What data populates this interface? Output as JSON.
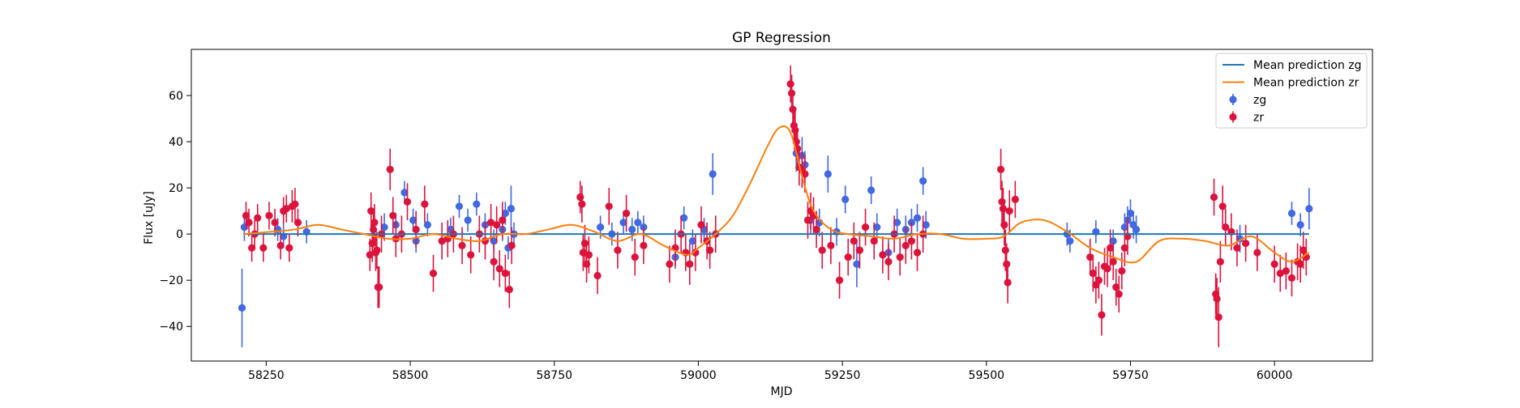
{
  "chart_data": {
    "type": "scatter",
    "title": "GP Regression",
    "xlabel": "MJD",
    "ylabel": "Flux [uJy]",
    "xlim": [
      58120,
      60170
    ],
    "ylim": [
      -55,
      80
    ],
    "xticks": [
      58250,
      58500,
      58750,
      59000,
      59250,
      59500,
      59750,
      60000
    ],
    "xtick_labels": [
      "58250",
      "58500",
      "58750",
      "59000",
      "59250",
      "59500",
      "59750",
      "60000"
    ],
    "yticks": [
      -40,
      -20,
      0,
      20,
      40,
      60
    ],
    "ytick_labels": [
      "−40",
      "−20",
      "0",
      "20",
      "40",
      "60"
    ],
    "grid": false,
    "legend_position": "upper right",
    "legend": [
      {
        "label": "Mean prediction zg",
        "kind": "line",
        "color": "#1f77b4"
      },
      {
        "label": "Mean prediction zr",
        "kind": "line",
        "color": "#ff7f0e"
      },
      {
        "label": "zg",
        "kind": "errorbar",
        "color": "#4169e1"
      },
      {
        "label": "zr",
        "kind": "errorbar",
        "color": "#dc143c"
      }
    ],
    "lines": [
      {
        "name": "Mean prediction zg",
        "color": "#1f77b4",
        "x": [
          58210,
          60060
        ],
        "y": [
          0,
          0
        ]
      },
      {
        "name": "Mean prediction zr",
        "color": "#ff7f0e",
        "x": [
          58210,
          58260,
          58300,
          58340,
          58380,
          58420,
          58460,
          58500,
          58540,
          58580,
          58620,
          58660,
          58700,
          58740,
          58780,
          58820,
          58860,
          58900,
          58940,
          58980,
          59000,
          59030,
          59060,
          59090,
          59120,
          59140,
          59160,
          59180,
          59200,
          59230,
          59260,
          59300,
          59340,
          59380,
          59420,
          59460,
          59500,
          59530,
          59560,
          59600,
          59640,
          59680,
          59720,
          59760,
          59800,
          59840,
          59880,
          59920,
          59960,
          60000,
          60030,
          60060
        ],
        "y": [
          0,
          1,
          2,
          4,
          2,
          0,
          -2,
          -2,
          0,
          -2,
          -3,
          0,
          0,
          2,
          4,
          1,
          -3,
          0,
          -5,
          -9,
          -6,
          0,
          8,
          22,
          38,
          46,
          44,
          25,
          10,
          2,
          0,
          -1,
          -2,
          0,
          0,
          -2,
          -2,
          -1,
          5,
          6,
          1,
          -6,
          -10,
          -12,
          -3,
          -2,
          -3,
          -5,
          -1,
          -8,
          -12,
          -8
        ]
      }
    ],
    "series": [
      {
        "name": "zg",
        "color": "#4169e1",
        "x": [
          58208,
          58212,
          58270,
          58280,
          58320,
          58455,
          58475,
          58490,
          58505,
          58510,
          58530,
          58570,
          58585,
          58600,
          58615,
          58630,
          58645,
          58660,
          58665,
          58670,
          58675,
          58680,
          58830,
          58850,
          58870,
          58885,
          58895,
          58905,
          58960,
          58975,
          58990,
          59010,
          59025,
          59170,
          59180,
          59185,
          59195,
          59210,
          59225,
          59240,
          59255,
          59275,
          59300,
          59310,
          59330,
          59345,
          59360,
          59370,
          59380,
          59390,
          59395,
          59640,
          59645,
          59690,
          59720,
          59740,
          59745,
          59750,
          59755,
          59760,
          59940,
          60030,
          60045,
          60060
        ],
        "y": [
          -32,
          3,
          2,
          -1,
          1,
          3,
          4,
          18,
          6,
          -3,
          4,
          2,
          12,
          6,
          13,
          4,
          -3,
          2,
          9,
          -6,
          11,
          0,
          3,
          0,
          5,
          2,
          5,
          3,
          -10,
          7,
          -3,
          2,
          26,
          35,
          34,
          30,
          6,
          5,
          26,
          1,
          15,
          -13,
          19,
          3,
          -8,
          5,
          2,
          5,
          7,
          23,
          4,
          0,
          -3,
          1,
          -3,
          3,
          6,
          9,
          4,
          2,
          -2,
          9,
          4,
          11
        ],
        "yerr": [
          17,
          6,
          5,
          5,
          5,
          6,
          5,
          5,
          5,
          5,
          5,
          5,
          5,
          5,
          5,
          5,
          5,
          5,
          5,
          5,
          10,
          5,
          5,
          5,
          5,
          5,
          5,
          5,
          5,
          5,
          5,
          5,
          9,
          8,
          8,
          6,
          6,
          6,
          8,
          6,
          6,
          10,
          6,
          6,
          6,
          6,
          6,
          6,
          6,
          6,
          6,
          5,
          5,
          5,
          5,
          6,
          6,
          6,
          6,
          6,
          6,
          5,
          5,
          9
        ]
      },
      {
        "name": "zr",
        "color": "#dc143c",
        "x": [
          58215,
          58220,
          58225,
          58230,
          58235,
          58245,
          58255,
          58265,
          58275,
          58280,
          58285,
          58290,
          58295,
          58300,
          58305,
          58430,
          58432,
          58434,
          58436,
          58438,
          58440,
          58442,
          58444,
          58446,
          58450,
          58465,
          58470,
          58475,
          58485,
          58495,
          58510,
          58525,
          58540,
          58555,
          58565,
          58575,
          58590,
          58605,
          58620,
          58630,
          58640,
          58645,
          58650,
          58655,
          58660,
          58665,
          58672,
          58676,
          58795,
          58798,
          58800,
          58803,
          58806,
          58810,
          58825,
          58845,
          58860,
          58875,
          58890,
          58905,
          58950,
          58960,
          58970,
          58978,
          58985,
          58995,
          59005,
          59015,
          59020,
          59030,
          59160,
          59162,
          59164,
          59166,
          59168,
          59170,
          59172,
          59175,
          59180,
          59185,
          59190,
          59195,
          59200,
          59205,
          59215,
          59230,
          59245,
          59260,
          59270,
          59280,
          59290,
          59305,
          59320,
          59330,
          59340,
          59350,
          59360,
          59370,
          59380,
          59390,
          59525,
          59527,
          59529,
          59531,
          59533,
          59535,
          59537,
          59540,
          59550,
          59680,
          59685,
          59690,
          59695,
          59700,
          59705,
          59710,
          59715,
          59720,
          59725,
          59730,
          59735,
          59740,
          59745,
          59895,
          59898,
          59900,
          59903,
          59906,
          59910,
          59915,
          59925,
          59935,
          59950,
          59970,
          60000,
          60010,
          60020,
          60030,
          60040,
          60045,
          60050,
          60055
        ],
        "y": [
          8,
          5,
          -6,
          0,
          7,
          -6,
          8,
          5,
          -5,
          10,
          11,
          -6,
          12,
          13,
          5,
          -9,
          10,
          -4,
          2,
          5,
          -8,
          -7,
          -23,
          -23,
          0,
          28,
          8,
          -2,
          0,
          14,
          2,
          13,
          -17,
          -3,
          -2,
          0,
          -5,
          -9,
          0,
          -3,
          5,
          -12,
          4,
          -15,
          6,
          -17,
          -24,
          -5,
          16,
          13,
          -8,
          -4,
          -13,
          -9,
          -18,
          12,
          -7,
          9,
          -10,
          -5,
          -13,
          -6,
          0,
          -8,
          -13,
          -8,
          4,
          -3,
          -7,
          0,
          65,
          61,
          54,
          47,
          45,
          40,
          37,
          29,
          28,
          26,
          6,
          10,
          8,
          2,
          -7,
          -5,
          -20,
          -10,
          -3,
          -7,
          3,
          -3,
          -9,
          -12,
          0,
          -10,
          -5,
          -3,
          -8,
          0,
          28,
          14,
          11,
          4,
          -7,
          -13,
          -21,
          10,
          15,
          -10,
          -17,
          -22,
          -20,
          -35,
          -14,
          -15,
          -6,
          -12,
          -23,
          -26,
          -16,
          -6,
          -1,
          16,
          -26,
          -28,
          -36,
          -12,
          12,
          3,
          1,
          -6,
          -4,
          -8,
          -13,
          -17,
          -16,
          -19,
          -12,
          -13,
          -7,
          -10
        ],
        "yerr": [
          6,
          6,
          6,
          6,
          6,
          6,
          6,
          6,
          6,
          6,
          6,
          6,
          7,
          7,
          6,
          7,
          8,
          8,
          8,
          8,
          8,
          8,
          9,
          9,
          8,
          9,
          8,
          8,
          8,
          8,
          8,
          8,
          8,
          8,
          8,
          8,
          8,
          8,
          8,
          8,
          8,
          8,
          8,
          8,
          8,
          8,
          8,
          8,
          7,
          8,
          8,
          8,
          8,
          8,
          8,
          8,
          8,
          8,
          8,
          8,
          8,
          8,
          8,
          8,
          9,
          8,
          8,
          8,
          8,
          8,
          8,
          8,
          8,
          8,
          8,
          8,
          8,
          8,
          8,
          8,
          8,
          8,
          8,
          8,
          8,
          8,
          8,
          8,
          8,
          8,
          8,
          8,
          8,
          8,
          8,
          8,
          8,
          8,
          8,
          8,
          9,
          9,
          9,
          9,
          9,
          9,
          9,
          9,
          8,
          8,
          8,
          8,
          8,
          9,
          8,
          8,
          8,
          8,
          8,
          8,
          8,
          8,
          8,
          8,
          9,
          9,
          13,
          9,
          9,
          8,
          8,
          8,
          8,
          8,
          8,
          8,
          8,
          8,
          8,
          8,
          8,
          8
        ]
      }
    ]
  }
}
